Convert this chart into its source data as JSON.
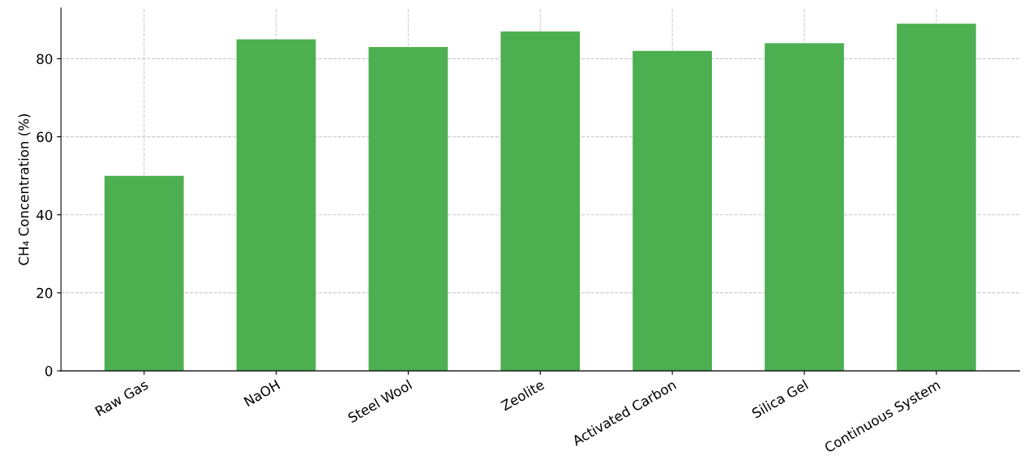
{
  "chart_data": {
    "type": "bar",
    "ylabel": "CH₄ Concentration (%)",
    "categories": [
      "Raw Gas",
      "NaOH",
      "Steel Wool",
      "Zeolite",
      "Activated Carbon",
      "Silica Gel",
      "Continuous System"
    ],
    "values": [
      50,
      85,
      83,
      87,
      82,
      84,
      89
    ],
    "color": "#4caf50",
    "ylim": [
      0,
      93
    ],
    "yticks": [
      0,
      20,
      40,
      60,
      80
    ],
    "grid": true
  }
}
